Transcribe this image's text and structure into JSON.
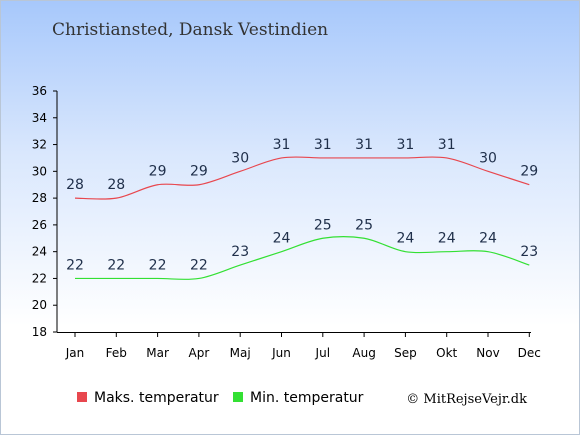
{
  "title": "Christiansted, Dansk Vestindien",
  "credit": "© MitRejseVejr.dk",
  "chart_data": {
    "type": "line",
    "categories": [
      "Jan",
      "Feb",
      "Mar",
      "Apr",
      "Maj",
      "Jun",
      "Jul",
      "Aug",
      "Sep",
      "Okt",
      "Nov",
      "Dec"
    ],
    "series": [
      {
        "name": "Maks. temperatur",
        "color": "#e8474e",
        "values": [
          28,
          28,
          29,
          29,
          30,
          31,
          31,
          31,
          31,
          31,
          30,
          29
        ]
      },
      {
        "name": "Min. temperatur",
        "color": "#33e033",
        "values": [
          22,
          22,
          22,
          22,
          23,
          24,
          25,
          25,
          24,
          24,
          24,
          23
        ]
      }
    ],
    "yticks": [
      18,
      20,
      22,
      24,
      26,
      28,
      30,
      32,
      34,
      36
    ],
    "ylim": [
      18,
      36
    ],
    "grid": false,
    "legend_position": "bottom"
  }
}
